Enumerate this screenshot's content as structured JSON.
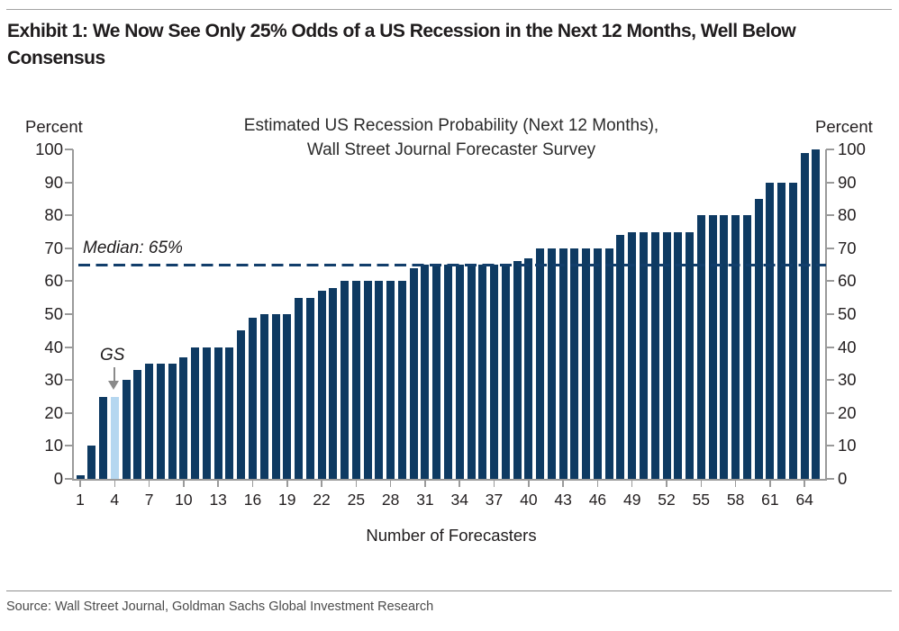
{
  "header": {
    "title_line1": "Exhibit 1: We Now See Only 25% Odds of a US Recession in the Next 12 Months, Well Below",
    "title_line2": "Consensus"
  },
  "chart": {
    "title_line1": "Estimated US Recession Probability (Next 12 Months),",
    "title_line2": "Wall Street Journal Forecaster Survey",
    "y_unit_left": "Percent",
    "y_unit_right": "Percent",
    "x_axis_label": "Number of Forecasters",
    "median_label": "Median: 65%",
    "highlight_label": "GS"
  },
  "chart_data": {
    "type": "bar",
    "title": "Estimated US Recession Probability (Next 12 Months), Wall Street Journal Forecaster Survey",
    "xlabel": "Number of Forecasters",
    "ylabel": "Percent",
    "ylim": [
      0,
      100
    ],
    "y_ticks": [
      0,
      10,
      20,
      30,
      40,
      50,
      60,
      70,
      80,
      90,
      100
    ],
    "x_ticks": [
      1,
      4,
      7,
      10,
      13,
      16,
      19,
      22,
      25,
      28,
      31,
      34,
      37,
      40,
      43,
      46,
      49,
      52,
      55,
      58,
      61,
      64
    ],
    "x": [
      1,
      2,
      3,
      4,
      5,
      6,
      7,
      8,
      9,
      10,
      11,
      12,
      13,
      14,
      15,
      16,
      17,
      18,
      19,
      20,
      21,
      22,
      23,
      24,
      25,
      26,
      27,
      28,
      29,
      30,
      31,
      32,
      33,
      34,
      35,
      36,
      37,
      38,
      39,
      40,
      41,
      42,
      43,
      44,
      45,
      46,
      47,
      48,
      49,
      50,
      51,
      52,
      53,
      54,
      55,
      56,
      57,
      58,
      59,
      60,
      61,
      62,
      63,
      64,
      65
    ],
    "values": [
      1,
      10,
      25,
      25,
      30,
      33,
      35,
      35,
      35,
      37,
      40,
      40,
      40,
      40,
      45,
      49,
      50,
      50,
      50,
      55,
      55,
      57,
      58,
      60,
      60,
      60,
      60,
      60,
      60,
      64,
      65,
      65,
      65,
      65,
      65,
      65,
      65,
      65,
      66,
      67,
      70,
      70,
      70,
      70,
      70,
      70,
      70,
      74,
      75,
      75,
      75,
      75,
      75,
      75,
      80,
      80,
      80,
      80,
      80,
      85,
      90,
      90,
      90,
      99,
      100
    ],
    "median": {
      "value": 65,
      "label": "Median: 65%",
      "style": "dashed"
    },
    "highlight": {
      "position": 4,
      "label": "GS",
      "value": 25
    },
    "bar_color": "#0E3A62",
    "highlight_color": "#B5D7F0",
    "median_color": "#123E6B",
    "axis_color": "#9a9a9a",
    "grid": false,
    "legend": "none"
  },
  "footer": {
    "source": "Source: Wall Street Journal, Goldman Sachs Global Investment Research"
  }
}
